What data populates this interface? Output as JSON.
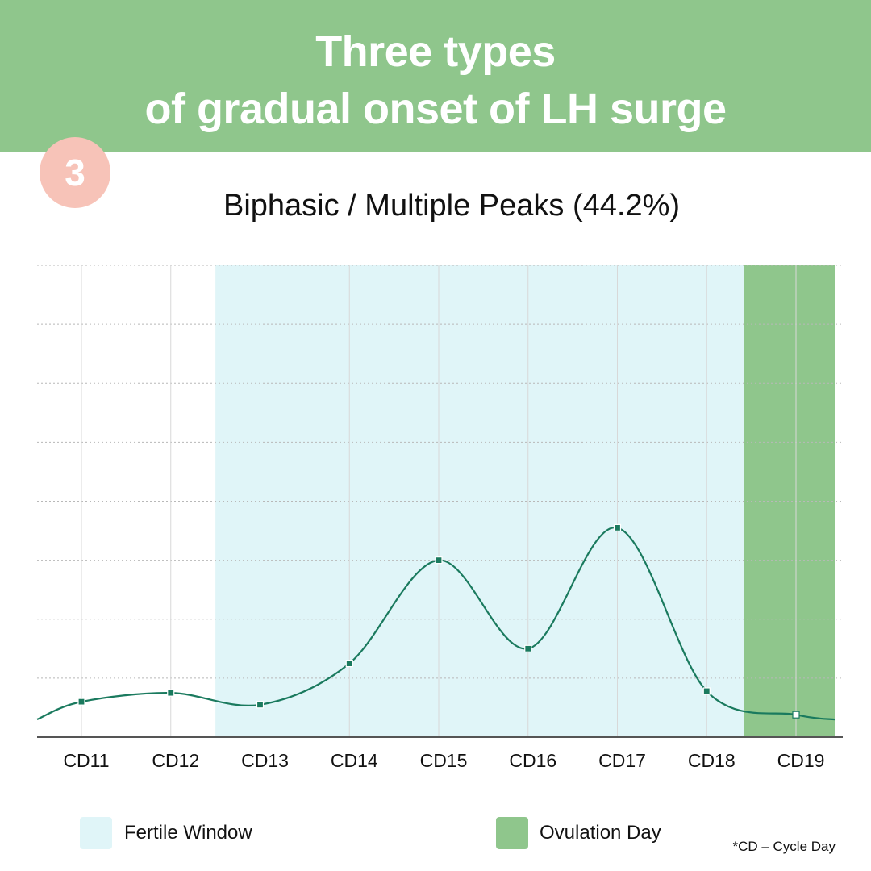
{
  "header": {
    "line1": "Three types",
    "line2": "of gradual onset of LH surge"
  },
  "badge": {
    "number": "3"
  },
  "colors": {
    "header_bg": "#8fc68c",
    "badge_bg": "#f7c3b8",
    "fertile_window": "#e0f5f8",
    "ovulation_day": "#8fc68c",
    "line": "#1a7a5e"
  },
  "chart_data": {
    "type": "line",
    "title": "Biphasic / Multiple Peaks (44.2%)",
    "categories": [
      "CD11",
      "CD12",
      "CD13",
      "CD14",
      "CD15",
      "CD16",
      "CD17",
      "CD18",
      "CD19"
    ],
    "series": [
      {
        "values": [
          0.6,
          0.75,
          0.55,
          1.25,
          3.0,
          1.5,
          3.55,
          0.78,
          0.38
        ]
      }
    ],
    "ylim": [
      0,
      8
    ],
    "grid": true,
    "shaded_regions": [
      {
        "label": "Fertile Window",
        "from": "CD13",
        "to": "CD18"
      },
      {
        "label": "Ovulation Day",
        "at": "CD19"
      }
    ],
    "legend": {
      "position": "bottom"
    }
  },
  "legend": {
    "fertile_window": "Fertile Window",
    "ovulation_day": "Ovulation Day"
  },
  "footnote": "*CD – Cycle Day"
}
